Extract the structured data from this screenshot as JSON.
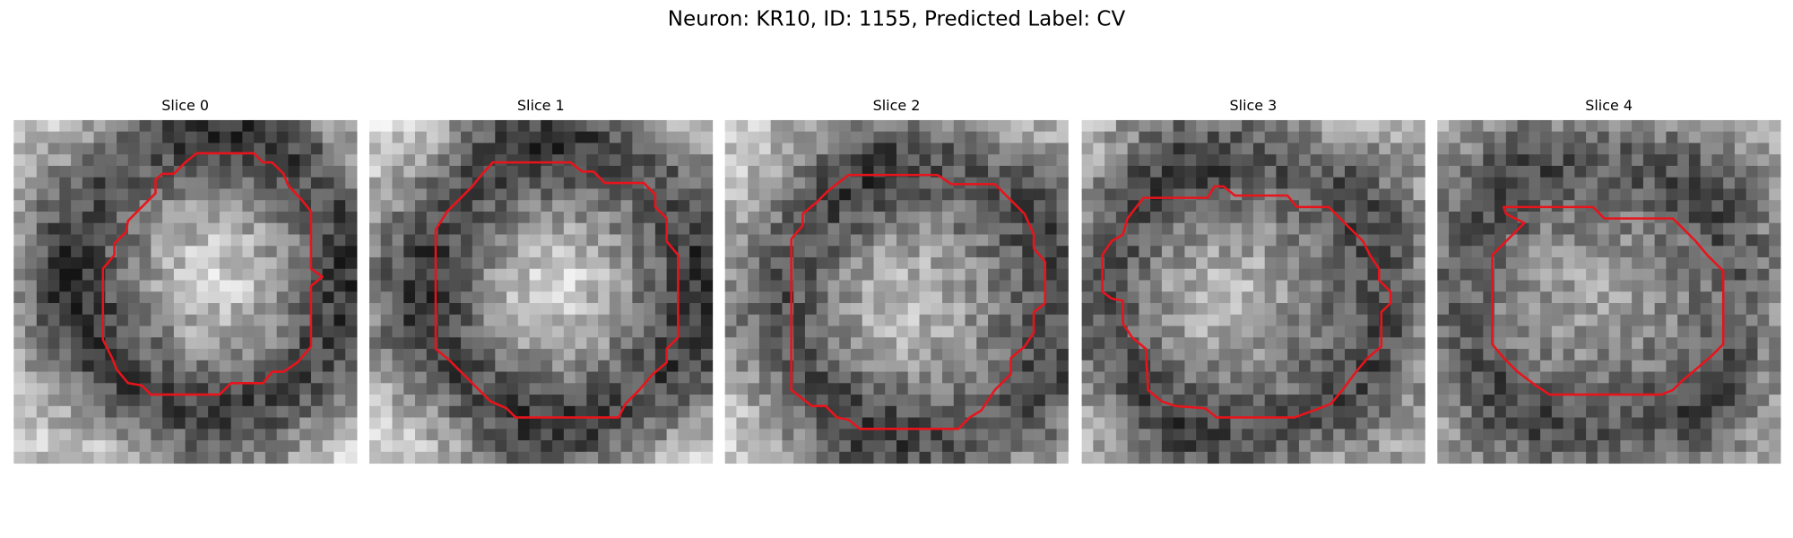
{
  "title": "Neuron: KR10, ID: 1155, Predicted Label: CV",
  "panels": [
    {
      "title": "Slice 0"
    },
    {
      "title": "Slice 1"
    },
    {
      "title": "Slice 2"
    },
    {
      "title": "Slice 3"
    },
    {
      "title": "Slice 4"
    }
  ]
}
